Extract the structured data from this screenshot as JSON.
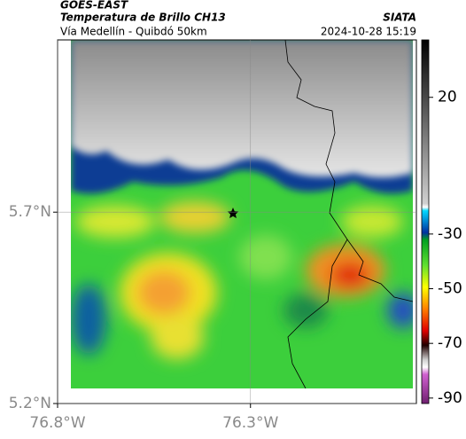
{
  "header": {
    "satellite": "GOES-EAST",
    "title": "Temperatura de Brillo CH13",
    "subtitle": "Vía Medellín - Quibdó 50km",
    "source": "SIATA",
    "timestamp": "2024-10-28 15:19"
  },
  "map": {
    "lon_lim": [
      -76.8,
      -75.87
    ],
    "lat_lim": [
      5.2,
      6.15
    ],
    "lat_ticks": [
      {
        "value": 5.7,
        "label": "5.7°N"
      },
      {
        "value": 5.2,
        "label": "5.2°N"
      }
    ],
    "lon_ticks": [
      {
        "value": -76.8,
        "label": "76.8°W"
      },
      {
        "value": -76.3,
        "label": "76.3°W"
      }
    ]
  },
  "colorbar": {
    "lim": [
      -92,
      41
    ],
    "ticks": [
      20,
      -30,
      -50,
      -70,
      -90
    ]
  }
}
